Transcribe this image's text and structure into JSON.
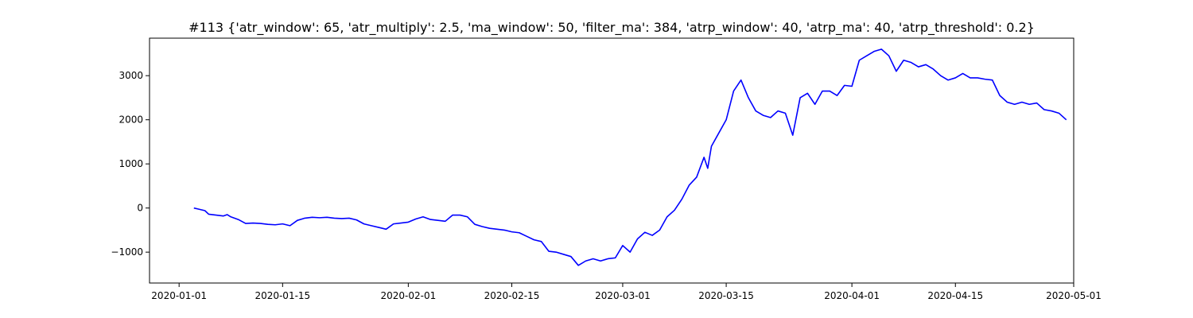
{
  "chart_data": {
    "type": "line",
    "title": "#113 {'atr_window': 65, 'atr_multiply': 2.5, 'ma_window': 50, 'filter_ma': 384, 'atrp_window': 40, 'atrp_ma': 40, 'atrp_threshold': 0.2}",
    "xlabel": "",
    "ylabel": "",
    "xlim": [
      "2019-12-28",
      "2020-05-01"
    ],
    "ylim": [
      -1700,
      3850
    ],
    "x_ticks": [
      "2020-01-01",
      "2020-01-15",
      "2020-02-01",
      "2020-02-15",
      "2020-03-01",
      "2020-03-15",
      "2020-04-01",
      "2020-04-15",
      "2020-05-01"
    ],
    "y_ticks": [
      -1000,
      0,
      1000,
      2000,
      3000
    ],
    "grid": false,
    "legend": "none",
    "line_color": "#0000ff",
    "series": [
      {
        "x": [
          "2020-01-03",
          "2020-01-03T12:00",
          "2020-01-04",
          "2020-01-04T12:00",
          "2020-01-05",
          "2020-01-06",
          "2020-01-07",
          "2020-01-07T12:00",
          "2020-01-08",
          "2020-01-09",
          "2020-01-10",
          "2020-01-11",
          "2020-01-12",
          "2020-01-13",
          "2020-01-14",
          "2020-01-15",
          "2020-01-16",
          "2020-01-17",
          "2020-01-18",
          "2020-01-19",
          "2020-01-20",
          "2020-01-21",
          "2020-01-22",
          "2020-01-23",
          "2020-01-24",
          "2020-01-25",
          "2020-01-26",
          "2020-01-27",
          "2020-01-28",
          "2020-01-29",
          "2020-01-30",
          "2020-01-31",
          "2020-02-01",
          "2020-02-02",
          "2020-02-03",
          "2020-02-04",
          "2020-02-05",
          "2020-02-06",
          "2020-02-07",
          "2020-02-08",
          "2020-02-09",
          "2020-02-10",
          "2020-02-11",
          "2020-02-12",
          "2020-02-13",
          "2020-02-14",
          "2020-02-15",
          "2020-02-16",
          "2020-02-17",
          "2020-02-18",
          "2020-02-19",
          "2020-02-20",
          "2020-02-21",
          "2020-02-22",
          "2020-02-23",
          "2020-02-24",
          "2020-02-25",
          "2020-02-26",
          "2020-02-27",
          "2020-02-28",
          "2020-02-29",
          "2020-03-01",
          "2020-03-02",
          "2020-03-03",
          "2020-03-04",
          "2020-03-05",
          "2020-03-06",
          "2020-03-07",
          "2020-03-08",
          "2020-03-09",
          "2020-03-10",
          "2020-03-11",
          "2020-03-12",
          "2020-03-12T12:00",
          "2020-03-13",
          "2020-03-14",
          "2020-03-15",
          "2020-03-16",
          "2020-03-17",
          "2020-03-18",
          "2020-03-19",
          "2020-03-20",
          "2020-03-21",
          "2020-03-22",
          "2020-03-23",
          "2020-03-24",
          "2020-03-25",
          "2020-03-26",
          "2020-03-27",
          "2020-03-28",
          "2020-03-29",
          "2020-03-30",
          "2020-03-31",
          "2020-04-01",
          "2020-04-02",
          "2020-04-03",
          "2020-04-04",
          "2020-04-05",
          "2020-04-06",
          "2020-04-07",
          "2020-04-08",
          "2020-04-09",
          "2020-04-10",
          "2020-04-11",
          "2020-04-12",
          "2020-04-13",
          "2020-04-14",
          "2020-04-15",
          "2020-04-16",
          "2020-04-17",
          "2020-04-18",
          "2020-04-19",
          "2020-04-20",
          "2020-04-21",
          "2020-04-22",
          "2020-04-23",
          "2020-04-24",
          "2020-04-25",
          "2020-04-26",
          "2020-04-27",
          "2020-04-28",
          "2020-04-29",
          "2020-04-30"
        ],
        "values": [
          0,
          -20,
          -40,
          -60,
          -140,
          -160,
          -180,
          -150,
          -200,
          -260,
          -350,
          -340,
          -350,
          -370,
          -380,
          -360,
          -400,
          -280,
          -230,
          -210,
          -220,
          -210,
          -230,
          -240,
          -230,
          -270,
          -360,
          -400,
          -440,
          -480,
          -360,
          -340,
          -320,
          -250,
          -200,
          -260,
          -280,
          -300,
          -160,
          -160,
          -200,
          -370,
          -420,
          -460,
          -480,
          -500,
          -540,
          -560,
          -640,
          -720,
          -760,
          -980,
          -1000,
          -1050,
          -1100,
          -1300,
          -1200,
          -1150,
          -1200,
          -1150,
          -1130,
          -850,
          -1000,
          -700,
          -550,
          -620,
          -500,
          -200,
          -50,
          200,
          520,
          700,
          1150,
          900,
          1400,
          1700,
          2000,
          2650,
          2900,
          2500,
          2200,
          2100,
          2050,
          2200,
          2150,
          1650,
          2500,
          2600,
          2350,
          2650,
          2650,
          2550,
          2780,
          2760,
          3350,
          3450,
          3550,
          3600,
          3450,
          3100,
          3350,
          3300,
          3200,
          3250,
          3150,
          3000,
          2900,
          2950,
          3050,
          2950,
          2950,
          2920,
          2900,
          2550,
          2400,
          2350,
          2400,
          2350,
          2380,
          2230,
          2200,
          2150,
          2000
        ]
      }
    ]
  }
}
